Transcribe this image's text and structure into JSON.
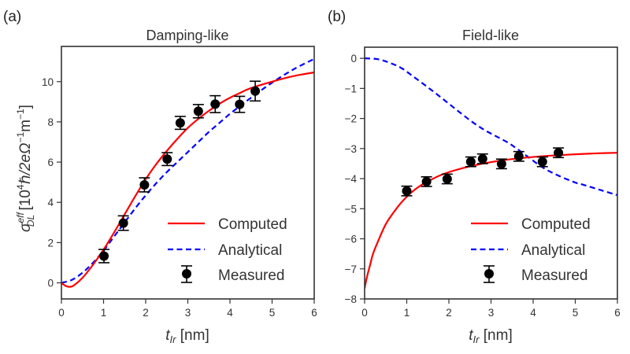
{
  "figure": {
    "panels": [
      {
        "tag": "(a)",
        "title": "Damping-like",
        "xlabel_main": "t",
        "xlabel_sub": "Ir",
        "xlabel_unit": " [nm]",
        "ylabel_symbol": "σ",
        "ylabel_sup": "eff",
        "ylabel_sub": "DL",
        "ylabel_unit_pre": " [10",
        "ylabel_unit_exp": "4",
        "ylabel_unit_mid": "ℏ/2eΩ",
        "ylabel_unit_exp2": "−1",
        "ylabel_unit_m": "m",
        "ylabel_unit_exp3": "−1",
        "ylabel_unit_post": "]",
        "legend": [
          "Computed",
          "Analytical",
          "Measured"
        ]
      },
      {
        "tag": "(b)",
        "title": "Field-like",
        "xlabel_main": "t",
        "xlabel_sub": "Ir",
        "xlabel_unit": " [nm]",
        "legend": [
          "Computed",
          "Analytical",
          "Measured"
        ]
      }
    ]
  },
  "chart_data": [
    {
      "type": "line",
      "title": "Damping-like",
      "panel_label": "(a)",
      "xlabel": "t_Ir [nm]",
      "ylabel": "σ_DL^eff [10^4 ℏ/2eΩ^-1 m^-1]",
      "xlim": [
        0,
        6
      ],
      "ylim": [
        -0.8,
        11.75
      ],
      "xticks": [
        0,
        1,
        2,
        3,
        4,
        5,
        6
      ],
      "yticks": [
        0,
        2,
        4,
        6,
        8,
        10
      ],
      "grid": false,
      "legend_position": "lower-right",
      "series": [
        {
          "name": "Computed",
          "style": "solid",
          "color": "#ff0000",
          "x": [
            0,
            0.1,
            0.2,
            0.3,
            0.5,
            0.75,
            1.0,
            1.25,
            1.5,
            1.75,
            2.0,
            2.25,
            2.5,
            2.75,
            3.0,
            3.25,
            3.5,
            3.75,
            4.0,
            4.25,
            4.5,
            5.0,
            5.5,
            6.0
          ],
          "y": [
            0,
            -0.15,
            -0.2,
            -0.12,
            0.25,
            0.9,
            1.65,
            2.5,
            3.4,
            4.3,
            5.15,
            5.9,
            6.55,
            7.15,
            7.7,
            8.15,
            8.55,
            8.9,
            9.2,
            9.45,
            9.68,
            10.0,
            10.27,
            10.46
          ]
        },
        {
          "name": "Analytical",
          "style": "dashed",
          "color": "#0000ff",
          "x": [
            0,
            0.25,
            0.5,
            0.75,
            1.0,
            1.25,
            1.5,
            1.75,
            2.0,
            2.25,
            2.5,
            2.75,
            3.0,
            3.25,
            3.5,
            3.75,
            4.0,
            4.25,
            4.5,
            5.0,
            5.5,
            6.0
          ],
          "y": [
            0,
            0.15,
            0.5,
            1.0,
            1.6,
            2.3,
            3.0,
            3.7,
            4.35,
            4.95,
            5.5,
            6.0,
            6.5,
            7.0,
            7.5,
            7.95,
            8.4,
            8.8,
            9.2,
            9.95,
            10.6,
            11.13
          ]
        },
        {
          "name": "Measured",
          "style": "errorbar",
          "color": "#000000",
          "x": [
            1.01,
            1.47,
            1.97,
            2.51,
            2.82,
            3.25,
            3.65,
            4.23,
            4.6
          ],
          "y": [
            1.33,
            2.97,
            4.87,
            6.15,
            7.95,
            8.53,
            8.88,
            8.87,
            9.53
          ],
          "yerr": [
            0.33,
            0.36,
            0.35,
            0.32,
            0.32,
            0.33,
            0.42,
            0.4,
            0.49
          ]
        }
      ]
    },
    {
      "type": "line",
      "title": "Field-like",
      "panel_label": "(b)",
      "xlabel": "t_Ir [nm]",
      "ylabel": "",
      "xlim": [
        0,
        6
      ],
      "ylim": [
        -8,
        0.37
      ],
      "xticks": [
        0,
        1,
        2,
        3,
        4,
        5,
        6
      ],
      "yticks": [
        0,
        -1,
        -2,
        -3,
        -4,
        -5,
        -6,
        -7,
        -8
      ],
      "ytick_labels": [
        "0",
        "−1",
        "−2",
        "−3",
        "−4",
        "−5",
        "−6",
        "−7",
        "−8"
      ],
      "grid": false,
      "legend_position": "lower-right",
      "series": [
        {
          "name": "Computed",
          "style": "solid",
          "color": "#ff0000",
          "x": [
            0,
            0.05,
            0.13,
            0.2,
            0.32,
            0.5,
            0.7,
            0.88,
            1.1,
            1.35,
            1.6,
            1.81,
            2.1,
            2.5,
            3.0,
            3.5,
            4.0,
            4.5,
            5.0,
            5.5,
            6.0
          ],
          "y": [
            -7.65,
            -7.3,
            -6.87,
            -6.5,
            -6.08,
            -5.52,
            -5.1,
            -4.78,
            -4.47,
            -4.21,
            -4.02,
            -3.88,
            -3.74,
            -3.59,
            -3.45,
            -3.35,
            -3.28,
            -3.23,
            -3.19,
            -3.16,
            -3.14
          ]
        },
        {
          "name": "Analytical",
          "style": "dashed",
          "color": "#0000ff",
          "x": [
            0,
            0.32,
            0.6,
            0.88,
            1.15,
            1.44,
            1.72,
            2.0,
            2.28,
            2.56,
            2.84,
            3.12,
            3.4,
            3.59,
            3.9,
            4.24,
            4.6,
            5.0,
            5.18,
            5.6,
            6.0
          ],
          "y": [
            0,
            -0.03,
            -0.15,
            -0.33,
            -0.6,
            -0.9,
            -1.2,
            -1.51,
            -1.82,
            -2.12,
            -2.38,
            -2.59,
            -2.8,
            -2.98,
            -3.3,
            -3.64,
            -3.9,
            -4.13,
            -4.2,
            -4.38,
            -4.55
          ]
        },
        {
          "name": "Measured",
          "style": "errorbar",
          "color": "#000000",
          "x": [
            1.0,
            1.47,
            1.96,
            2.52,
            2.8,
            3.25,
            3.66,
            4.22,
            4.6
          ],
          "y": [
            -4.41,
            -4.1,
            -4.01,
            -3.44,
            -3.34,
            -3.51,
            -3.26,
            -3.44,
            -3.14
          ],
          "yerr": [
            0.16,
            0.16,
            0.16,
            0.16,
            0.16,
            0.16,
            0.16,
            0.16,
            0.16
          ]
        }
      ]
    }
  ]
}
